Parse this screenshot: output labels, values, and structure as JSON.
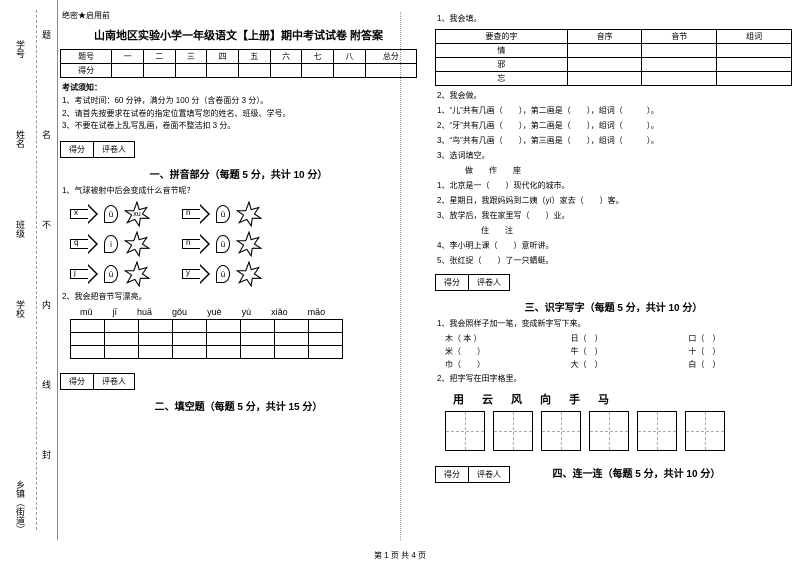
{
  "leftMargin": {
    "labels": [
      "学号",
      "姓名",
      "班级",
      "学校",
      "",
      "乡镇（街道）"
    ],
    "innerLabels": [
      "题",
      "名",
      "不",
      "内",
      "线",
      "封"
    ]
  },
  "header": {
    "pre": "绝密★启用前",
    "title": "山南地区实验小学一年级语文【上册】期中考试试卷 附答案"
  },
  "gradeTable": {
    "headers": [
      "题号",
      "一",
      "二",
      "三",
      "四",
      "五",
      "六",
      "七",
      "八",
      "总分"
    ],
    "row2": "得分"
  },
  "examNotice": {
    "title": "考试须知：",
    "items": [
      "1、考试时间：60 分钟，满分为 100 分（含卷面分 3 分）。",
      "2、请首先按要求在试卷的指定位置填写您的姓名、班级、学号。",
      "3、不要在试卷上乱写乱画，卷面不整洁扣 3 分。"
    ]
  },
  "scorebox": {
    "c1": "得分",
    "c2": "评卷人"
  },
  "section1": {
    "title": "一、拼音部分（每题 5 分，共计 10 分）",
    "q1": "1、气球被射中后会变成什么音节呢？",
    "rows": [
      {
        "a": "x",
        "b": "ü",
        "c": "xu",
        "d": "n",
        "e": "ü"
      },
      {
        "a": "q",
        "b": "i",
        "c": "",
        "d": "n",
        "e": "ü"
      },
      {
        "a": "j",
        "b": "ü",
        "c": "",
        "d": "y",
        "e": "ü"
      }
    ],
    "q2": "2、我会把音节写漂亮。",
    "pinyin": [
      "mǔ",
      "jī",
      "huā",
      "gǒu",
      "yuè",
      "yú",
      "xiǎo",
      "māo"
    ]
  },
  "section2": {
    "title": "二、填空题（每题 5 分，共计 15 分）"
  },
  "right": {
    "q1": {
      "label": "1、我会填。",
      "headers": [
        "要查的字",
        "音序",
        "音节",
        "组词"
      ],
      "rows": [
        "情",
        "邪",
        "忘"
      ]
    },
    "q2": {
      "label": "2、我会做。",
      "lines": [
        "1、“儿”共有几画（　　），第二画是（　　），组词（　　　）。",
        "2、“牙”共有几画（　　），第二画是（　　），组词（　　　）。",
        "3、“鸟”共有几画（　　），第三画是（　　），组词（　　　）。"
      ]
    },
    "q3": {
      "label": "3、选词填空。",
      "words": "做　　作　　座",
      "lines": [
        "1、北京是一（　　）现代化的城市。",
        "2、星期日，我跟妈妈到二姨（yí）家去（　　）客。",
        "3、放学后，我在家里写（　　）业。",
        "　　住　　注",
        "4、李小明上课（　　）意听讲。",
        "5、张红捉（　　）了一只蜻蜓。"
      ]
    }
  },
  "section3": {
    "title": "三、识字写字（每题 5 分，共计 10 分）",
    "q1": "1、我会照样子加一笔，变成新字写下来。",
    "grid": [
      [
        "木（ 本 ）",
        "日（　）",
        "口（　）"
      ],
      [
        "米（　　）",
        "牛（　）",
        "十（　）"
      ],
      [
        "巾（　　）",
        "大（　）",
        "白（　）"
      ]
    ],
    "q2": "2、把字写在田字格里。",
    "chars": [
      "用",
      "云",
      "风",
      "向",
      "手",
      "马"
    ]
  },
  "section4": {
    "title": "四、连一连（每题 5 分，共计 10 分）"
  },
  "footer": "第 1 页 共 4 页",
  "colors": {
    "text": "#000000",
    "bg": "#ffffff",
    "border": "#000000",
    "dash": "#aaaaaa"
  }
}
